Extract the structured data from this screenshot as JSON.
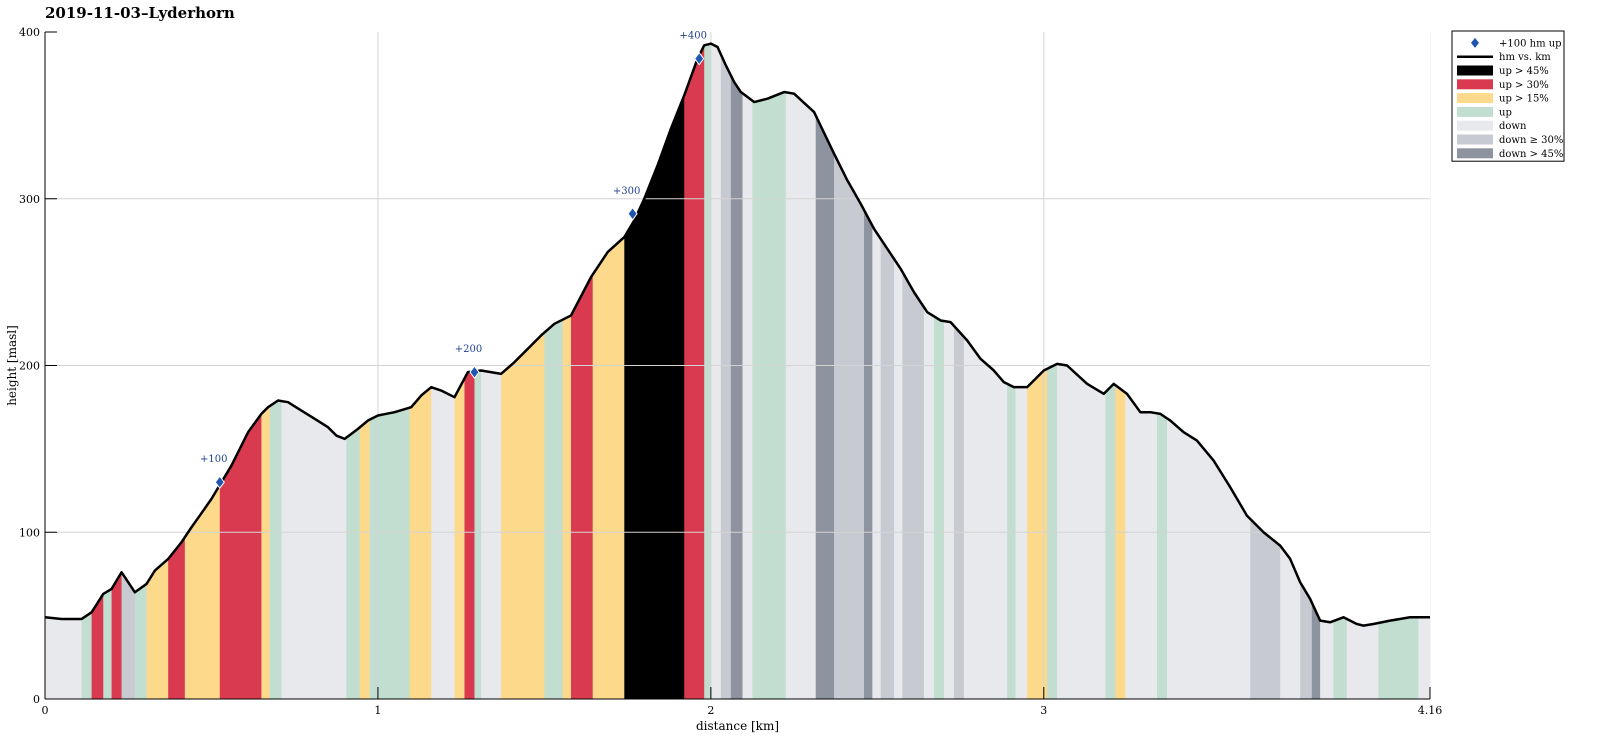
{
  "chart_data": {
    "type": "area",
    "title": "2019-11-03–Lyderhorn",
    "xlabel": "distance [km]",
    "ylabel": "height [masl]",
    "xlim": [
      0,
      4.16
    ],
    "ylim": [
      0,
      400
    ],
    "x_ticks": [
      0,
      1,
      2,
      3,
      4.16
    ],
    "x_tick_labels": [
      "0",
      "1",
      "2",
      "3",
      "4.16"
    ],
    "y_ticks": [
      0,
      100,
      200,
      300,
      400
    ],
    "y_tick_labels": [
      "0",
      "100",
      "200",
      "300",
      "400"
    ],
    "grid": true,
    "legend_position": "outside top-right",
    "colors": {
      "up45": "#000000",
      "up30": "#d93a4f",
      "up15": "#fdd98b",
      "up": "#c1ded0",
      "down": "#e8e9ec",
      "down30": "#c8cad2",
      "down45": "#8e93a0",
      "line": "#000000",
      "marker": "#1e56b0",
      "marker_label": "#1f3f8f"
    },
    "legend": [
      {
        "key": "marker",
        "label": "+100 hm up"
      },
      {
        "key": "line",
        "label": "hm vs. km"
      },
      {
        "key": "up45",
        "label": "up > 45%"
      },
      {
        "key": "up30",
        "label": "up > 30%"
      },
      {
        "key": "up15",
        "label": "up > 15%"
      },
      {
        "key": "up",
        "label": "up"
      },
      {
        "key": "down",
        "label": "down"
      },
      {
        "key": "down30",
        "label": "down ≥ 30%"
      },
      {
        "key": "down45",
        "label": "down > 45%"
      }
    ],
    "profile": {
      "x": [
        0,
        0.05,
        0.11,
        0.14,
        0.175,
        0.2,
        0.23,
        0.27,
        0.305,
        0.33,
        0.37,
        0.41,
        0.44,
        0.465,
        0.5,
        0.53,
        0.56,
        0.585,
        0.61,
        0.65,
        0.67,
        0.7,
        0.73,
        0.77,
        0.81,
        0.85,
        0.875,
        0.9,
        0.94,
        0.97,
        1.0,
        1.05,
        1.1,
        1.13,
        1.16,
        1.19,
        1.23,
        1.27,
        1.31,
        1.37,
        1.41,
        1.45,
        1.49,
        1.53,
        1.58,
        1.64,
        1.69,
        1.74,
        1.77,
        1.8,
        1.84,
        1.88,
        1.92,
        1.96,
        1.98,
        2.0,
        2.02,
        2.045,
        2.07,
        2.09,
        2.13,
        2.17,
        2.22,
        2.25,
        2.31,
        2.37,
        2.41,
        2.45,
        2.49,
        2.53,
        2.57,
        2.61,
        2.65,
        2.69,
        2.72,
        2.77,
        2.81,
        2.85,
        2.88,
        2.91,
        2.95,
        3.0,
        3.04,
        3.07,
        3.13,
        3.18,
        3.21,
        3.25,
        3.29,
        3.32,
        3.35,
        3.38,
        3.42,
        3.46,
        3.51,
        3.56,
        3.61,
        3.66,
        3.71,
        3.74,
        3.77,
        3.8,
        3.83,
        3.86,
        3.9,
        3.94,
        3.96,
        3.99,
        4.04,
        4.1,
        4.14,
        4.16
      ],
      "y": [
        49,
        48,
        48,
        52,
        63,
        66,
        76,
        64,
        69,
        77,
        84,
        94,
        103,
        110,
        120,
        130,
        140,
        150,
        160,
        171,
        175,
        179,
        178,
        173,
        168,
        163,
        158,
        156,
        162,
        167,
        170,
        172,
        175,
        182,
        187,
        185,
        181,
        196,
        197,
        195,
        202,
        210,
        218,
        225,
        230,
        253,
        268,
        277,
        287,
        300,
        320,
        342,
        362,
        384,
        392,
        393,
        391,
        380,
        370,
        364,
        358,
        360,
        364,
        363,
        352,
        327,
        311,
        297,
        282,
        270,
        258,
        244,
        232,
        227,
        226,
        215,
        204,
        197,
        190,
        187,
        187,
        197,
        201,
        200,
        189,
        183,
        189,
        183,
        172,
        172,
        171,
        167,
        160,
        155,
        143,
        127,
        110,
        100,
        92,
        84,
        70,
        60,
        47,
        46,
        49,
        45,
        44,
        45,
        47,
        49,
        49,
        49
      ]
    },
    "bands": [
      {
        "from": 0.0,
        "to": 0.11,
        "cat": "down"
      },
      {
        "from": 0.11,
        "to": 0.14,
        "cat": "up"
      },
      {
        "from": 0.14,
        "to": 0.175,
        "cat": "up30"
      },
      {
        "from": 0.175,
        "to": 0.2,
        "cat": "up"
      },
      {
        "from": 0.2,
        "to": 0.23,
        "cat": "up30"
      },
      {
        "from": 0.23,
        "to": 0.27,
        "cat": "down30"
      },
      {
        "from": 0.27,
        "to": 0.305,
        "cat": "up"
      },
      {
        "from": 0.305,
        "to": 0.37,
        "cat": "up15"
      },
      {
        "from": 0.37,
        "to": 0.42,
        "cat": "up30"
      },
      {
        "from": 0.42,
        "to": 0.525,
        "cat": "up15"
      },
      {
        "from": 0.525,
        "to": 0.65,
        "cat": "up30"
      },
      {
        "from": 0.65,
        "to": 0.675,
        "cat": "up15"
      },
      {
        "from": 0.675,
        "to": 0.71,
        "cat": "up"
      },
      {
        "from": 0.71,
        "to": 0.905,
        "cat": "down"
      },
      {
        "from": 0.905,
        "to": 0.945,
        "cat": "up"
      },
      {
        "from": 0.945,
        "to": 0.975,
        "cat": "up15"
      },
      {
        "from": 0.975,
        "to": 1.095,
        "cat": "up"
      },
      {
        "from": 1.095,
        "to": 1.16,
        "cat": "up15"
      },
      {
        "from": 1.16,
        "to": 1.23,
        "cat": "down"
      },
      {
        "from": 1.23,
        "to": 1.26,
        "cat": "up15"
      },
      {
        "from": 1.26,
        "to": 1.29,
        "cat": "up30"
      },
      {
        "from": 1.29,
        "to": 1.31,
        "cat": "up"
      },
      {
        "from": 1.31,
        "to": 1.37,
        "cat": "down"
      },
      {
        "from": 1.37,
        "to": 1.5,
        "cat": "up15"
      },
      {
        "from": 1.5,
        "to": 1.555,
        "cat": "up"
      },
      {
        "from": 1.555,
        "to": 1.58,
        "cat": "up15"
      },
      {
        "from": 1.58,
        "to": 1.645,
        "cat": "up30"
      },
      {
        "from": 1.645,
        "to": 1.74,
        "cat": "up15"
      },
      {
        "from": 1.74,
        "to": 1.92,
        "cat": "up45"
      },
      {
        "from": 1.92,
        "to": 1.98,
        "cat": "up30"
      },
      {
        "from": 1.98,
        "to": 2.0,
        "cat": "up"
      },
      {
        "from": 2.0,
        "to": 2.03,
        "cat": "down"
      },
      {
        "from": 2.03,
        "to": 2.06,
        "cat": "down30"
      },
      {
        "from": 2.06,
        "to": 2.095,
        "cat": "down45"
      },
      {
        "from": 2.095,
        "to": 2.125,
        "cat": "down"
      },
      {
        "from": 2.125,
        "to": 2.225,
        "cat": "up"
      },
      {
        "from": 2.225,
        "to": 2.315,
        "cat": "down"
      },
      {
        "from": 2.315,
        "to": 2.37,
        "cat": "down45"
      },
      {
        "from": 2.37,
        "to": 2.46,
        "cat": "down30"
      },
      {
        "from": 2.46,
        "to": 2.485,
        "cat": "down45"
      },
      {
        "from": 2.485,
        "to": 2.51,
        "cat": "down"
      },
      {
        "from": 2.51,
        "to": 2.55,
        "cat": "down30"
      },
      {
        "from": 2.55,
        "to": 2.575,
        "cat": "down"
      },
      {
        "from": 2.575,
        "to": 2.64,
        "cat": "down30"
      },
      {
        "from": 2.64,
        "to": 2.67,
        "cat": "down"
      },
      {
        "from": 2.67,
        "to": 2.7,
        "cat": "up"
      },
      {
        "from": 2.7,
        "to": 2.73,
        "cat": "down"
      },
      {
        "from": 2.73,
        "to": 2.76,
        "cat": "down30"
      },
      {
        "from": 2.76,
        "to": 2.89,
        "cat": "down"
      },
      {
        "from": 2.89,
        "to": 2.915,
        "cat": "up"
      },
      {
        "from": 2.915,
        "to": 2.95,
        "cat": "down"
      },
      {
        "from": 2.95,
        "to": 3.01,
        "cat": "up15"
      },
      {
        "from": 3.01,
        "to": 3.04,
        "cat": "up"
      },
      {
        "from": 3.04,
        "to": 3.185,
        "cat": "down"
      },
      {
        "from": 3.185,
        "to": 3.215,
        "cat": "up"
      },
      {
        "from": 3.215,
        "to": 3.245,
        "cat": "up15"
      },
      {
        "from": 3.245,
        "to": 3.34,
        "cat": "down"
      },
      {
        "from": 3.34,
        "to": 3.37,
        "cat": "up"
      },
      {
        "from": 3.37,
        "to": 3.62,
        "cat": "down"
      },
      {
        "from": 3.62,
        "to": 3.71,
        "cat": "down30"
      },
      {
        "from": 3.71,
        "to": 3.77,
        "cat": "down"
      },
      {
        "from": 3.77,
        "to": 3.805,
        "cat": "down30"
      },
      {
        "from": 3.805,
        "to": 3.83,
        "cat": "down45"
      },
      {
        "from": 3.83,
        "to": 3.87,
        "cat": "down"
      },
      {
        "from": 3.87,
        "to": 3.91,
        "cat": "up"
      },
      {
        "from": 3.91,
        "to": 4.005,
        "cat": "down"
      },
      {
        "from": 4.005,
        "to": 4.125,
        "cat": "up"
      },
      {
        "from": 4.125,
        "to": 4.16,
        "cat": "down"
      }
    ],
    "markers": [
      {
        "label": "+100",
        "x": 0.525,
        "y": 130
      },
      {
        "label": "+200",
        "x": 1.29,
        "y": 196
      },
      {
        "label": "+300",
        "x": 1.765,
        "y": 291
      },
      {
        "label": "+400",
        "x": 1.965,
        "y": 384
      }
    ]
  }
}
